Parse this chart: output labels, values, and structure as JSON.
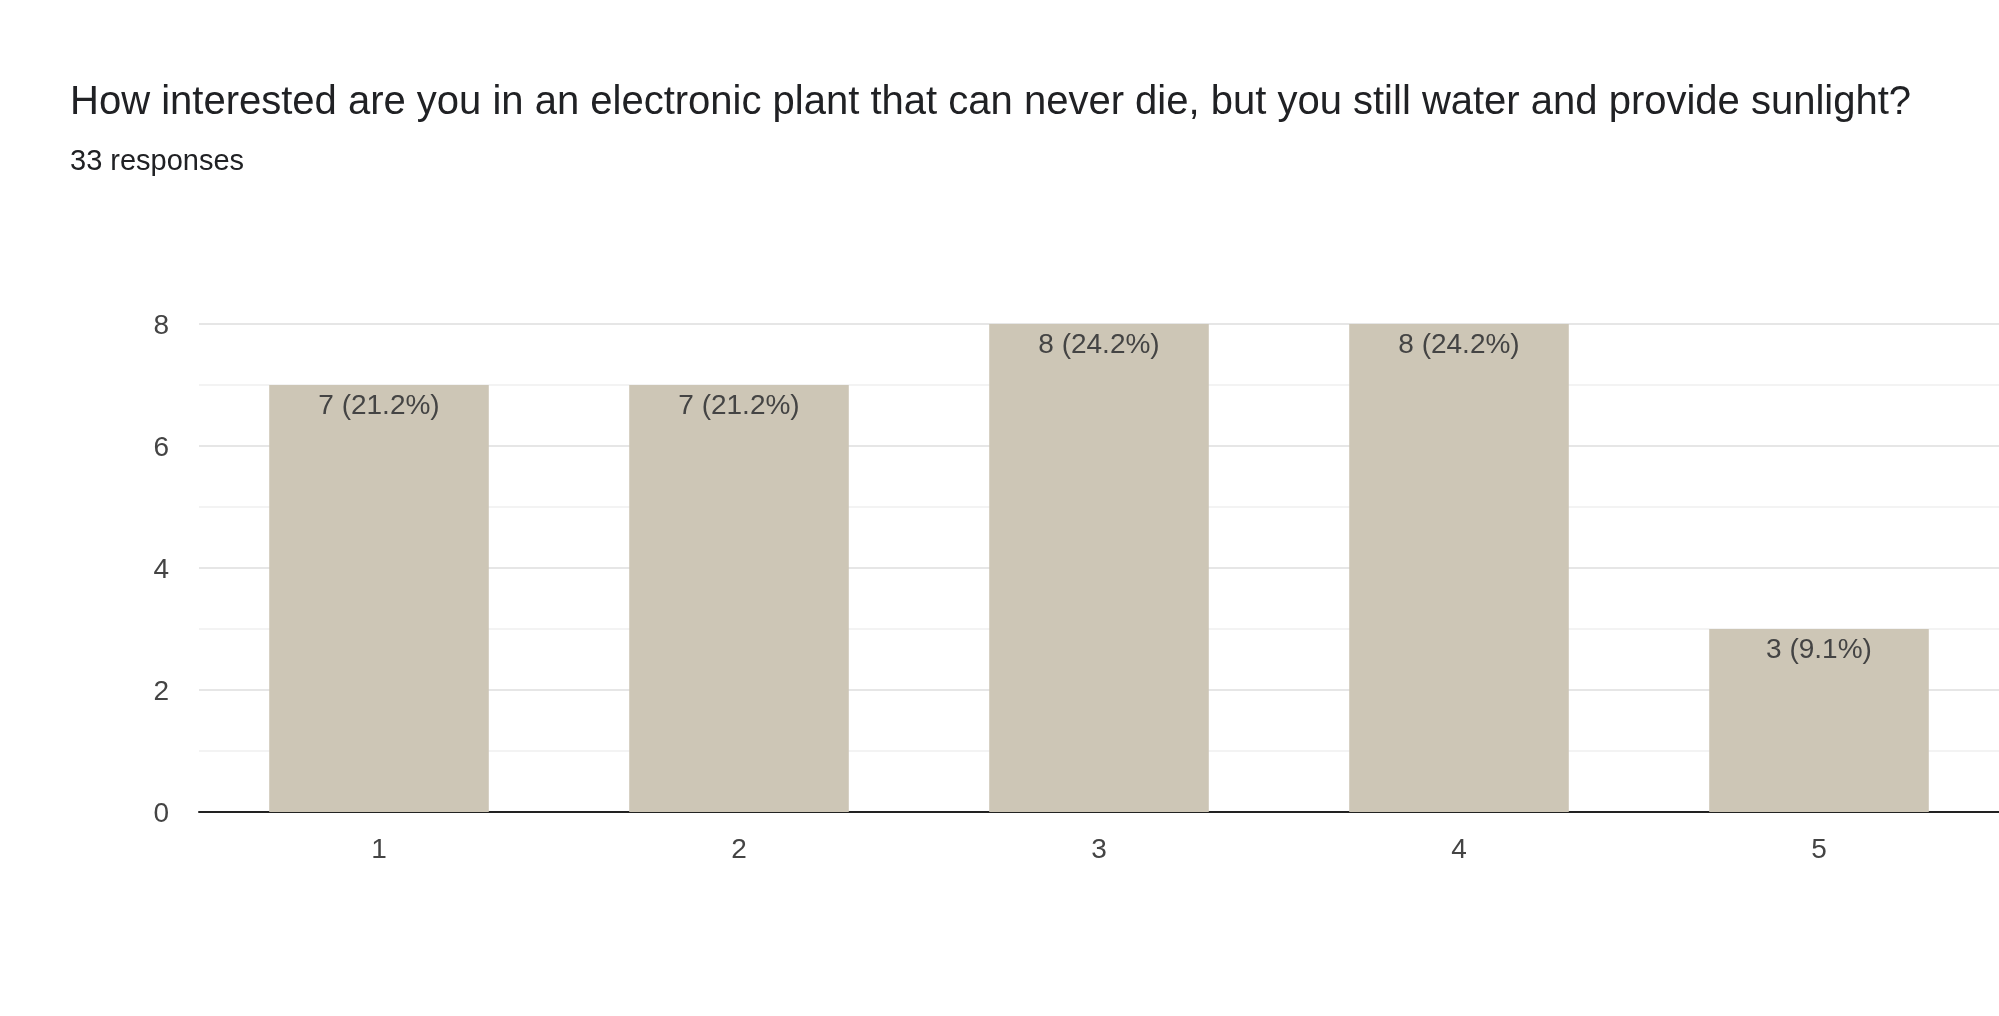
{
  "chart_data": {
    "type": "bar",
    "title": "How interested are you in an electronic plant that can never die, but you still water and provide sunlight?",
    "subtitle": "33 responses",
    "categories": [
      "1",
      "2",
      "3",
      "4",
      "5"
    ],
    "values": [
      7,
      7,
      8,
      8,
      3
    ],
    "value_labels": [
      "7 (21.2%)",
      "7 (21.2%)",
      "8 (24.2%)",
      "8 (24.2%)",
      "3 (9.1%)"
    ],
    "color": "#cdc6b6",
    "ylim": [
      0,
      8
    ],
    "yticks": [
      0,
      2,
      4,
      6,
      8
    ],
    "grid": "y"
  }
}
